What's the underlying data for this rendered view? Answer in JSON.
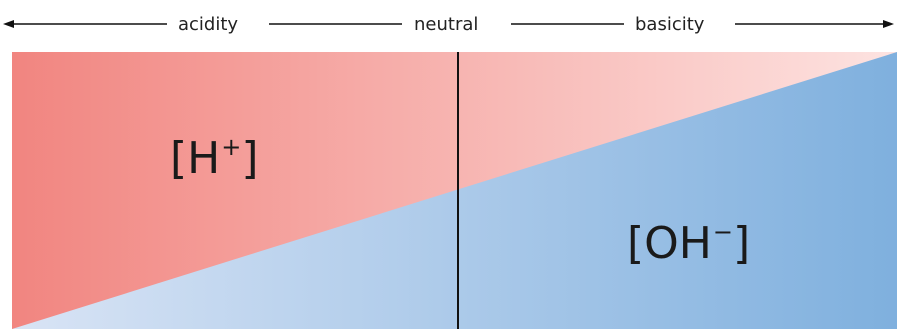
{
  "scale": {
    "acidity_label": "acidity",
    "neutral_label": "neutral",
    "basicity_label": "basicity"
  },
  "labels": {
    "h_ion": {
      "base": "[H",
      "charge": "+",
      "close": "]"
    },
    "oh_ion": {
      "base": "[OH",
      "charge": "−",
      "close": "]"
    }
  },
  "colors": {
    "acid_strong": "#f18580",
    "acid_light": "#fde3e1",
    "base_light": "#d9e4f5",
    "base_strong": "#7fb0de",
    "line": "#111111",
    "text": "#222222"
  }
}
